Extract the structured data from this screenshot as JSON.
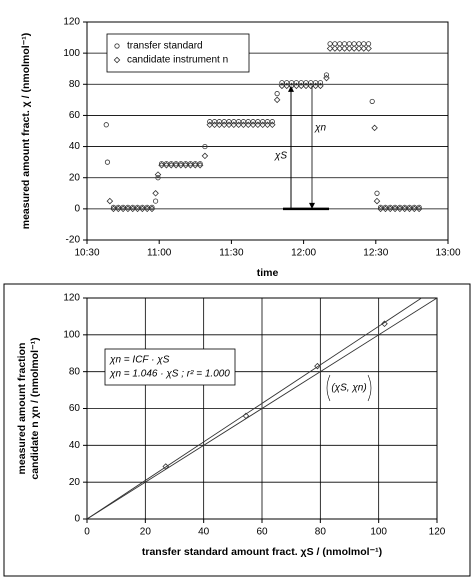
{
  "chart_data": [
    {
      "type": "scatter",
      "xlabel": "time",
      "ylabel": "measured amount fract. χ  /  (nmolmol⁻¹)",
      "xlim": [
        630,
        780
      ],
      "xticks": [
        {
          "value": 630,
          "label": "10:30"
        },
        {
          "value": 660,
          "label": "11:00"
        },
        {
          "value": 690,
          "label": "11:30"
        },
        {
          "value": 720,
          "label": "12:00"
        },
        {
          "value": 750,
          "label": "12:30"
        },
        {
          "value": 780,
          "label": "13:00"
        }
      ],
      "ylim": [
        -20,
        120
      ],
      "yticks": [
        -20,
        0,
        20,
        40,
        60,
        80,
        100,
        120
      ],
      "grid": "y",
      "legend": "upper left",
      "x": [
        638,
        638.5,
        639.5,
        641,
        643,
        645,
        647,
        649,
        651,
        653,
        655,
        657,
        658.5,
        659.5,
        661,
        663,
        665,
        667,
        669,
        671,
        673,
        675,
        677,
        679,
        681,
        683,
        685,
        687,
        689,
        691,
        693,
        695,
        697,
        699,
        701,
        703,
        705,
        707,
        709,
        711,
        713,
        715,
        717,
        719,
        721,
        723,
        725,
        727,
        729.5,
        731,
        733,
        735,
        737,
        739,
        741,
        743,
        745,
        747,
        748.5,
        749.5,
        750.5,
        752,
        754,
        756,
        758,
        760,
        762,
        764,
        766,
        768
      ],
      "series": [
        {
          "name": "transfer standard",
          "marker": "circle",
          "color": "#333333",
          "values": [
            54,
            30,
            null,
            1,
            1,
            1,
            1,
            1,
            1,
            1,
            1,
            1,
            5,
            20,
            29,
            29,
            29,
            29,
            29,
            29,
            29,
            29,
            29,
            40,
            56,
            56,
            56,
            56,
            56,
            56,
            56,
            56,
            56,
            56,
            56,
            56,
            56,
            56,
            74,
            81,
            81,
            81,
            81,
            81,
            81,
            81,
            81,
            81,
            86,
            106,
            106,
            106,
            106,
            106,
            106,
            106,
            106,
            106,
            69,
            null,
            10,
            1,
            1,
            1,
            1,
            1,
            1,
            1,
            1,
            1
          ]
        },
        {
          "name": "candidate instrument n",
          "marker": "diamond",
          "color": "#333333",
          "values": [
            null,
            null,
            5,
            0,
            0,
            0,
            0,
            0,
            0,
            0,
            0,
            0,
            10,
            22,
            28,
            28,
            28,
            28,
            28,
            28,
            28,
            28,
            28,
            34,
            54,
            54,
            54,
            54,
            54,
            54,
            54,
            54,
            54,
            54,
            54,
            54,
            54,
            54,
            70,
            79,
            79,
            79,
            79,
            79,
            79,
            79,
            79,
            79,
            84,
            103,
            103,
            103,
            103,
            103,
            103,
            103,
            103,
            103,
            null,
            52,
            5,
            0,
            0,
            0,
            0,
            0,
            0,
            0,
            0,
            0
          ]
        }
      ],
      "annotations": [
        "χS",
        "χn"
      ]
    },
    {
      "type": "scatter",
      "xlabel": "transfer standard amount fract. χS  /  (nmolmol⁻¹)",
      "ylabel": [
        "measured amount fraction",
        "candidate n χn   /   (nmolmol⁻¹)"
      ],
      "xlim": [
        0,
        120
      ],
      "xticks": [
        0,
        20,
        40,
        60,
        80,
        100,
        120
      ],
      "ylim": [
        0,
        120
      ],
      "yticks": [
        0,
        20,
        40,
        60,
        80,
        100,
        120
      ],
      "grid": "both",
      "series": [
        {
          "marker": "diamond",
          "color": "#333333",
          "x": [
            27,
            54.5,
            79,
            102
          ],
          "values": [
            28.5,
            56,
            83,
            106
          ]
        },
        {
          "marker": "line",
          "color": "#333333",
          "x": [
            0,
            120
          ],
          "values": [
            0,
            120
          ]
        },
        {
          "marker": "line",
          "color": "#333333",
          "x": [
            0,
            114.7
          ],
          "values": [
            0,
            120
          ]
        }
      ],
      "equations": [
        "χn = ICF · χS",
        "χn = 1.046 · χS  ;  r² = 1.000"
      ],
      "point_label": "(χS, χn)"
    }
  ]
}
